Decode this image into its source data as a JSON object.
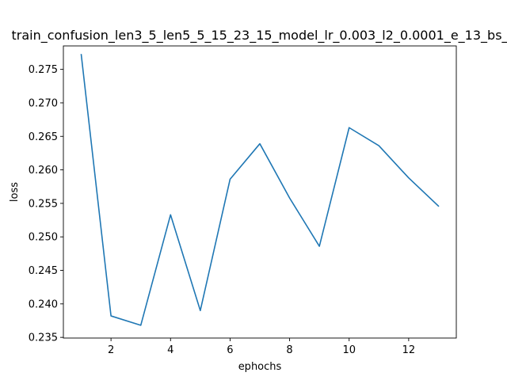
{
  "chart_data": {
    "type": "line",
    "title": "train_confusion_len3_5_len5_5_15_23_15_model_lr_0.003_l2_0.0001_e_13_bs_",
    "xlabel": "ephochs",
    "ylabel": "loss",
    "xlim": [
      0.4,
      13.6
    ],
    "ylim": [
      0.2349,
      0.2785
    ],
    "xticks": [
      2,
      4,
      6,
      8,
      10,
      12
    ],
    "yticks": [
      0.235,
      0.24,
      0.245,
      0.25,
      0.255,
      0.26,
      0.265,
      0.27,
      0.275
    ],
    "grid": false,
    "series": [
      {
        "color": "#1f77b4",
        "x": [
          1,
          2,
          3,
          4,
          5,
          6,
          7,
          8,
          9,
          10,
          11,
          12,
          13
        ],
        "y": [
          0.2772,
          0.2382,
          0.2368,
          0.2533,
          0.239,
          0.2586,
          0.2639,
          0.2558,
          0.2486,
          0.2663,
          0.2636,
          0.2588,
          0.2546
        ]
      }
    ]
  }
}
